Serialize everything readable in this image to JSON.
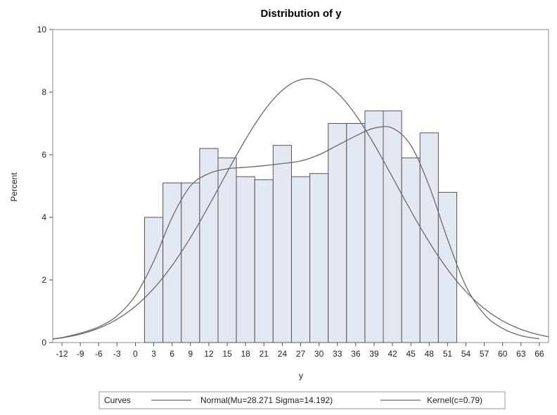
{
  "chart_data": {
    "type": "bar",
    "title": "Distribution of y",
    "xlabel": "y",
    "ylabel": "Percent",
    "xlim": [
      -13.5,
      67.5
    ],
    "ylim": [
      0,
      10
    ],
    "bin_width": 3,
    "x_ticks": [
      -12,
      -9,
      -6,
      -3,
      0,
      3,
      6,
      9,
      12,
      15,
      18,
      21,
      24,
      27,
      30,
      33,
      36,
      39,
      42,
      45,
      48,
      51,
      54,
      57,
      60,
      63,
      66
    ],
    "y_ticks": [
      0,
      2,
      4,
      6,
      8,
      10
    ],
    "categories": [
      "3",
      "6",
      "9",
      "12",
      "15",
      "18",
      "21",
      "24",
      "27",
      "30",
      "33",
      "36",
      "39",
      "42",
      "45",
      "48",
      "51"
    ],
    "bin_centers": [
      3,
      6,
      9,
      12,
      15,
      18,
      21,
      24,
      27,
      30,
      33,
      36,
      39,
      42,
      45,
      48,
      51
    ],
    "values": [
      4.0,
      5.1,
      5.1,
      6.2,
      5.9,
      5.3,
      5.2,
      6.3,
      5.3,
      5.4,
      7.0,
      7.0,
      7.4,
      7.4,
      5.9,
      6.7,
      4.8
    ],
    "curves": {
      "normal": {
        "mu": 28.271,
        "sigma": 14.192
      },
      "kernel": {
        "x": [
          -13.5,
          -12,
          -9,
          -6,
          -3,
          0,
          3,
          6,
          9,
          12,
          15,
          18,
          21,
          24,
          27,
          30,
          33,
          36,
          39,
          42,
          45,
          48,
          51,
          54,
          57,
          60,
          63,
          66
        ],
        "y": [
          0.12,
          0.16,
          0.3,
          0.5,
          0.85,
          1.5,
          2.6,
          4.0,
          5.0,
          5.4,
          5.55,
          5.6,
          5.65,
          5.72,
          5.8,
          6.0,
          6.3,
          6.6,
          6.85,
          6.85,
          6.3,
          5.0,
          3.3,
          1.8,
          0.9,
          0.45,
          0.22,
          0.12
        ]
      }
    },
    "legend": {
      "position": "bottom",
      "title": "Curves",
      "entries": [
        "Normal(Mu=28.271 Sigma=14.192)",
        "Kernel(c=0.79)"
      ]
    },
    "grid": false
  }
}
